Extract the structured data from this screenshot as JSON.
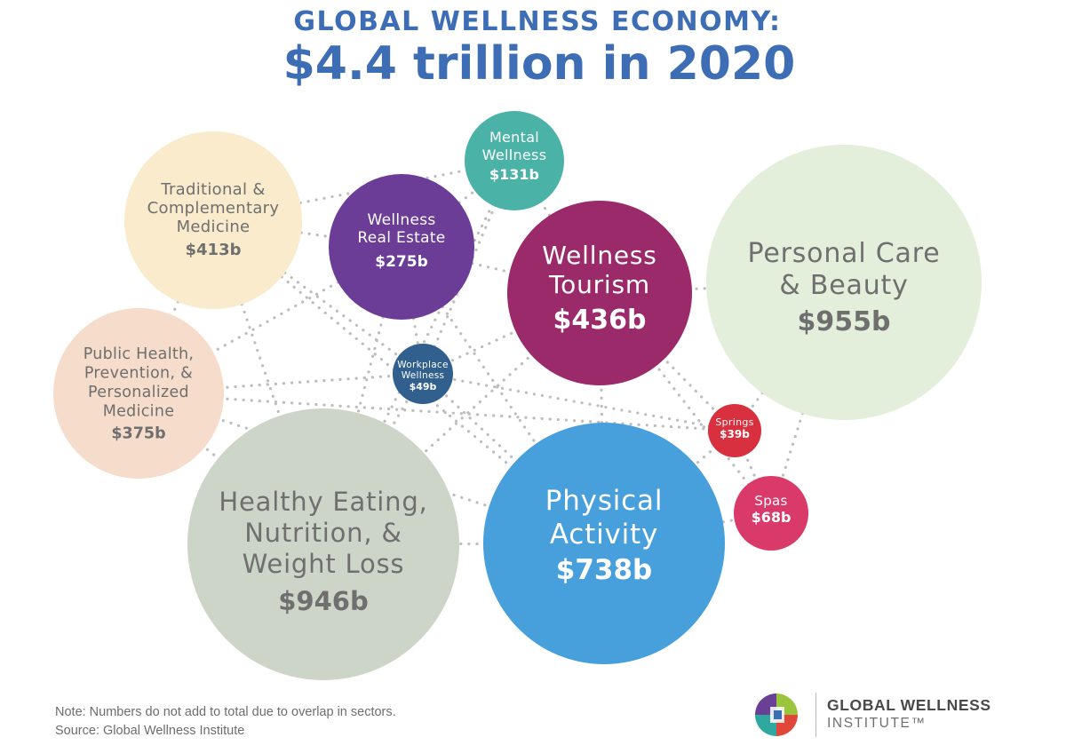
{
  "chart_data": {
    "type": "bubble",
    "title": "GLOBAL WELLNESS ECONOMY:",
    "subtitle": "$4.4 trillion in 2020",
    "unit": "billion USD",
    "sectors": [
      {
        "id": "tcm",
        "lines": [
          "Traditional &",
          "Complementary",
          "Medicine"
        ],
        "value_label": "$413b",
        "value": 413,
        "color": "#f9ebcc",
        "text_color": "#6f6f6f"
      },
      {
        "id": "wre",
        "lines": [
          "Wellness",
          "Real Estate"
        ],
        "value_label": "$275b",
        "value": 275,
        "color": "#6b3d97",
        "text_color": "#ffffff"
      },
      {
        "id": "mw",
        "lines": [
          "Mental",
          "Wellness"
        ],
        "value_label": "$131b",
        "value": 131,
        "color": "#4ab2a6",
        "text_color": "#ffffff"
      },
      {
        "id": "wt",
        "lines": [
          "Wellness",
          "Tourism"
        ],
        "value_label": "$436b",
        "value": 436,
        "color": "#9b2a6b",
        "text_color": "#ffffff"
      },
      {
        "id": "pcb",
        "lines": [
          "Personal Care",
          "& Beauty"
        ],
        "value_label": "$955b",
        "value": 955,
        "color": "#e3eedb",
        "text_color": "#6f6f6f"
      },
      {
        "id": "ph",
        "lines": [
          "Public Health,",
          "Prevention, &",
          "Personalized",
          "Medicine"
        ],
        "value_label": "$375b",
        "value": 375,
        "color": "#f5dccb",
        "text_color": "#6f6f6f"
      },
      {
        "id": "ww",
        "lines": [
          "Workplace",
          "Wellness"
        ],
        "value_label": "$49b",
        "value": 49,
        "color": "#315f8e",
        "text_color": "#ffffff"
      },
      {
        "id": "spr",
        "lines": [
          "Springs"
        ],
        "value_label": "$39b",
        "value": 39,
        "color": "#d8303e",
        "text_color": "#ffffff"
      },
      {
        "id": "spa",
        "lines": [
          "Spas"
        ],
        "value_label": "$68b",
        "value": 68,
        "color": "#da3a6a",
        "text_color": "#ffffff"
      },
      {
        "id": "he",
        "lines": [
          "Healthy Eating,",
          "Nutrition, &",
          "Weight Loss"
        ],
        "value_label": "$946b",
        "value": 946,
        "color": "#ccd5c8",
        "text_color": "#6f6f6f"
      },
      {
        "id": "pa",
        "lines": [
          "Physical",
          "Activity"
        ],
        "value_label": "$738b",
        "value": 738,
        "color": "#479fdc",
        "text_color": "#ffffff"
      }
    ]
  },
  "notes": {
    "line1": "Note: Numbers do not add to total due to overlap in sectors.",
    "line2": "Source: Global Wellness Institute"
  },
  "logo": {
    "line1": "GLOBAL WELLNESS",
    "line2": "INSTITUTE™"
  }
}
